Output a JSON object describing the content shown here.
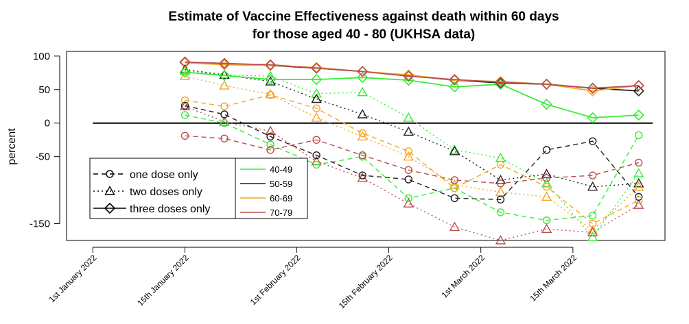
{
  "chart_data": {
    "type": "line",
    "title_line1": "Estimate of Vaccine Effectiveness against death within 60 days",
    "title_line2": "for those aged 40 - 80 (UKHSA data)",
    "ylabel": "percent",
    "xlabel": "",
    "ylim": [
      -175,
      107
    ],
    "y_ticks": [
      100,
      50,
      0,
      -50,
      -150
    ],
    "x_ticks": [
      {
        "date": "2022-01-01",
        "label": "1st January 2022"
      },
      {
        "date": "2022-01-15",
        "label": "15th January 2022"
      },
      {
        "date": "2022-02-01",
        "label": "1st February 2022"
      },
      {
        "date": "2022-02-15",
        "label": "15th February 2022"
      },
      {
        "date": "2022-03-01",
        "label": "1st March 2022"
      },
      {
        "date": "2022-03-15",
        "label": "15th March 2022"
      }
    ],
    "x_range": [
      "2021-12-28",
      "2022-03-29"
    ],
    "x": [
      "2022-01-15",
      "2022-01-21",
      "2022-01-28",
      "2022-02-04",
      "2022-02-11",
      "2022-02-18",
      "2022-02-25",
      "2022-03-04",
      "2022-03-11",
      "2022-03-18",
      "2022-03-25"
    ],
    "reference_line": 0,
    "legend_dose": [
      {
        "label": "one dose only",
        "linestyle": "dashed",
        "marker": "circle"
      },
      {
        "label": "two doses only",
        "linestyle": "dotted",
        "marker": "triangle"
      },
      {
        "label": "three doses only",
        "linestyle": "solid",
        "marker": "diamond"
      }
    ],
    "legend_age": [
      {
        "label": "40-49",
        "color": "#33ee33"
      },
      {
        "label": "50-59",
        "color": "#222222"
      },
      {
        "label": "60-69",
        "color": "#f5a623"
      },
      {
        "label": "70-79",
        "color": "#b8504e"
      }
    ],
    "series": [
      {
        "age": "40-49",
        "dose": "one dose only",
        "color": "#33ee33",
        "linestyle": "dashed",
        "marker": "circle",
        "values": [
          12,
          0,
          -32,
          -62,
          -50,
          -112,
          -97,
          -133,
          -145,
          -138,
          -18
        ]
      },
      {
        "age": "40-49",
        "dose": "two doses only",
        "color": "#33ee33",
        "linestyle": "dotted",
        "marker": "triangle",
        "values": [
          78,
          72,
          70,
          44,
          46,
          8,
          -40,
          -52,
          -90,
          -170,
          -75
        ]
      },
      {
        "age": "40-49",
        "dose": "three doses only",
        "color": "#33ee33",
        "linestyle": "solid",
        "marker": "diamond",
        "values": [
          76,
          71,
          65,
          65,
          68,
          64,
          54,
          58,
          28,
          8,
          12
        ]
      },
      {
        "age": "50-59",
        "dose": "one dose only",
        "color": "#222222",
        "linestyle": "dashed",
        "marker": "circle",
        "values": [
          26,
          13,
          -20,
          -48,
          -78,
          -84,
          -112,
          -114,
          -40,
          -27,
          -110
        ]
      },
      {
        "age": "50-59",
        "dose": "two doses only",
        "color": "#222222",
        "linestyle": "dotted",
        "marker": "triangle",
        "values": [
          80,
          72,
          62,
          36,
          13,
          -13,
          -42,
          -85,
          -76,
          -95,
          -90
        ]
      },
      {
        "age": "50-59",
        "dose": "three doses only",
        "color": "#222222",
        "linestyle": "solid",
        "marker": "diamond",
        "values": [
          91,
          89,
          86,
          82,
          77,
          71,
          64,
          60,
          58,
          52,
          48
        ]
      },
      {
        "age": "60-69",
        "dose": "one dose only",
        "color": "#f5a623",
        "linestyle": "dashed",
        "marker": "circle",
        "values": [
          34,
          25,
          42,
          22,
          -15,
          -42,
          -97,
          -62,
          -95,
          -150,
          -115
        ]
      },
      {
        "age": "60-69",
        "dose": "two doses only",
        "color": "#f5a623",
        "linestyle": "dotted",
        "marker": "triangle",
        "values": [
          70,
          56,
          43,
          8,
          -20,
          -50,
          -92,
          -103,
          -110,
          -160,
          -95
        ]
      },
      {
        "age": "60-69",
        "dose": "three doses only",
        "color": "#f5a623",
        "linestyle": "solid",
        "marker": "diamond",
        "values": [
          90,
          87,
          86,
          83,
          77,
          72,
          64,
          62,
          58,
          48,
          56
        ]
      },
      {
        "age": "70-79",
        "dose": "one dose only",
        "color": "#b8504e",
        "linestyle": "dashed",
        "marker": "circle",
        "values": [
          -19,
          -23,
          -40,
          -25,
          -48,
          -70,
          -85,
          -90,
          -82,
          -78,
          -59
        ]
      },
      {
        "age": "70-79",
        "dose": "two doses only",
        "color": "#b8504e",
        "linestyle": "dotted",
        "marker": "triangle",
        "values": [
          25,
          2,
          -12,
          -57,
          -82,
          -120,
          -155,
          -175,
          -158,
          -163,
          -122
        ]
      },
      {
        "age": "70-79",
        "dose": "three doses only",
        "color": "#b8504e",
        "linestyle": "solid",
        "marker": "diamond",
        "values": [
          91,
          89,
          87,
          82,
          77,
          70,
          65,
          61,
          58,
          52,
          56
        ]
      }
    ]
  }
}
